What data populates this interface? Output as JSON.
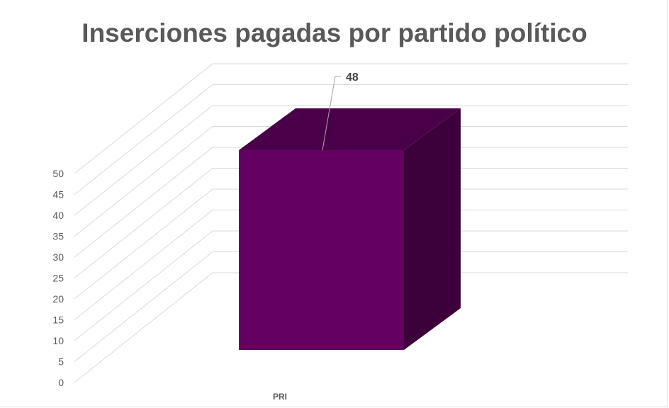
{
  "chart_data": {
    "type": "bar",
    "title": "Inserciones pagadas por partido político",
    "categories": [
      "PRI"
    ],
    "values": [
      48
    ],
    "data_labels": [
      "48"
    ],
    "ylim": [
      0,
      50
    ],
    "y_ticks": [
      0,
      5,
      10,
      15,
      20,
      25,
      30,
      35,
      40,
      45,
      50
    ],
    "grid": true,
    "legend": "none",
    "three_d": true,
    "colors": {
      "front": "#630060",
      "top": "#4a0048",
      "side": "#3c003b"
    }
  }
}
